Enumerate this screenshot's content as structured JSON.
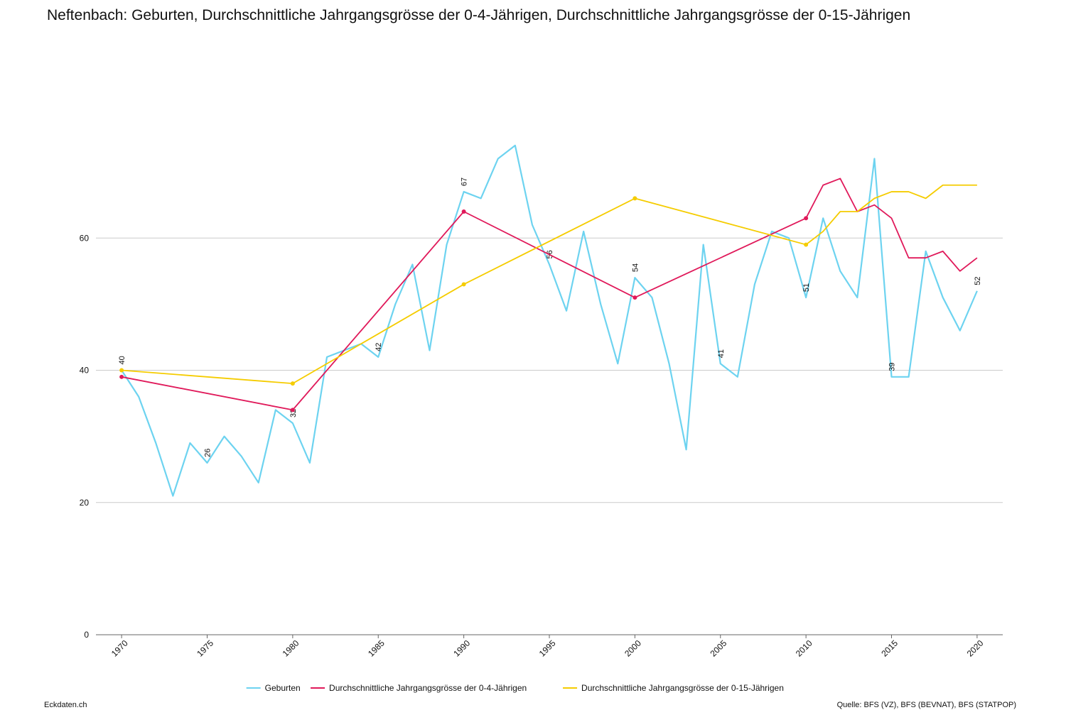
{
  "chart_data": {
    "type": "line",
    "title": "Neftenbach: Geburten, Durchschnittliche Jahrgangsgrösse der 0-4-Jährigen, Durchschnittliche Jahrgangsgrösse der 0-15-Jährigen",
    "xlim": [
      1968.5,
      2021.5
    ],
    "xticks": [
      1970,
      1975,
      1980,
      1985,
      1990,
      1995,
      2000,
      2005,
      2010,
      2015,
      2020
    ],
    "ylim": [
      0,
      80
    ],
    "yticks": [
      0,
      20,
      40,
      60
    ],
    "grid": true,
    "legend": "bottom",
    "series": [
      {
        "name": "Geburten",
        "color": "#6dd3f0",
        "x": [
          1970,
          1971,
          1972,
          1973,
          1974,
          1975,
          1976,
          1977,
          1978,
          1979,
          1980,
          1981,
          1982,
          1983,
          1984,
          1985,
          1986,
          1987,
          1988,
          1989,
          1990,
          1991,
          1992,
          1993,
          1994,
          1995,
          1996,
          1997,
          1998,
          1999,
          2000,
          2001,
          2002,
          2003,
          2004,
          2005,
          2006,
          2007,
          2008,
          2009,
          2010,
          2011,
          2012,
          2013,
          2014,
          2015,
          2016,
          2017,
          2018,
          2019,
          2020
        ],
        "values": [
          40,
          36,
          29,
          21,
          29,
          26,
          30,
          27,
          23,
          34,
          32,
          26,
          42,
          43,
          44,
          42,
          50,
          56,
          43,
          59,
          67,
          66,
          72,
          74,
          62,
          56,
          49,
          61,
          50,
          41,
          54,
          51,
          41,
          28,
          59,
          41,
          39,
          53,
          61,
          60,
          51,
          63,
          55,
          51,
          72,
          39,
          39,
          58,
          51,
          46,
          52
        ]
      },
      {
        "name": "Durchschnittliche Jahrgangsgrösse der 0-4-Jährigen",
        "color": "#e0195a",
        "x": [
          1970,
          1980,
          1990,
          2000,
          2010,
          2011,
          2012,
          2013,
          2014,
          2015,
          2016,
          2017,
          2018,
          2019,
          2020
        ],
        "values": [
          39,
          34,
          64,
          51,
          63,
          68,
          69,
          64,
          65,
          63,
          57,
          57,
          58,
          55,
          57
        ]
      },
      {
        "name": "Durchschnittliche Jahrgangsgrösse der 0-15-Jährigen",
        "color": "#f5cc00",
        "x": [
          1970,
          1980,
          1990,
          2000,
          2010,
          2011,
          2012,
          2013,
          2014,
          2015,
          2016,
          2017,
          2018,
          2019,
          2020
        ],
        "values": [
          40,
          38,
          53,
          66,
          59,
          61,
          64,
          64,
          66,
          67,
          67,
          66,
          68,
          68,
          68
        ]
      }
    ]
  },
  "footer": {
    "credit": "Eckdaten.ch",
    "source": "Quelle: BFS (VZ), BFS (BEVNAT), BFS (STATPOP)"
  }
}
